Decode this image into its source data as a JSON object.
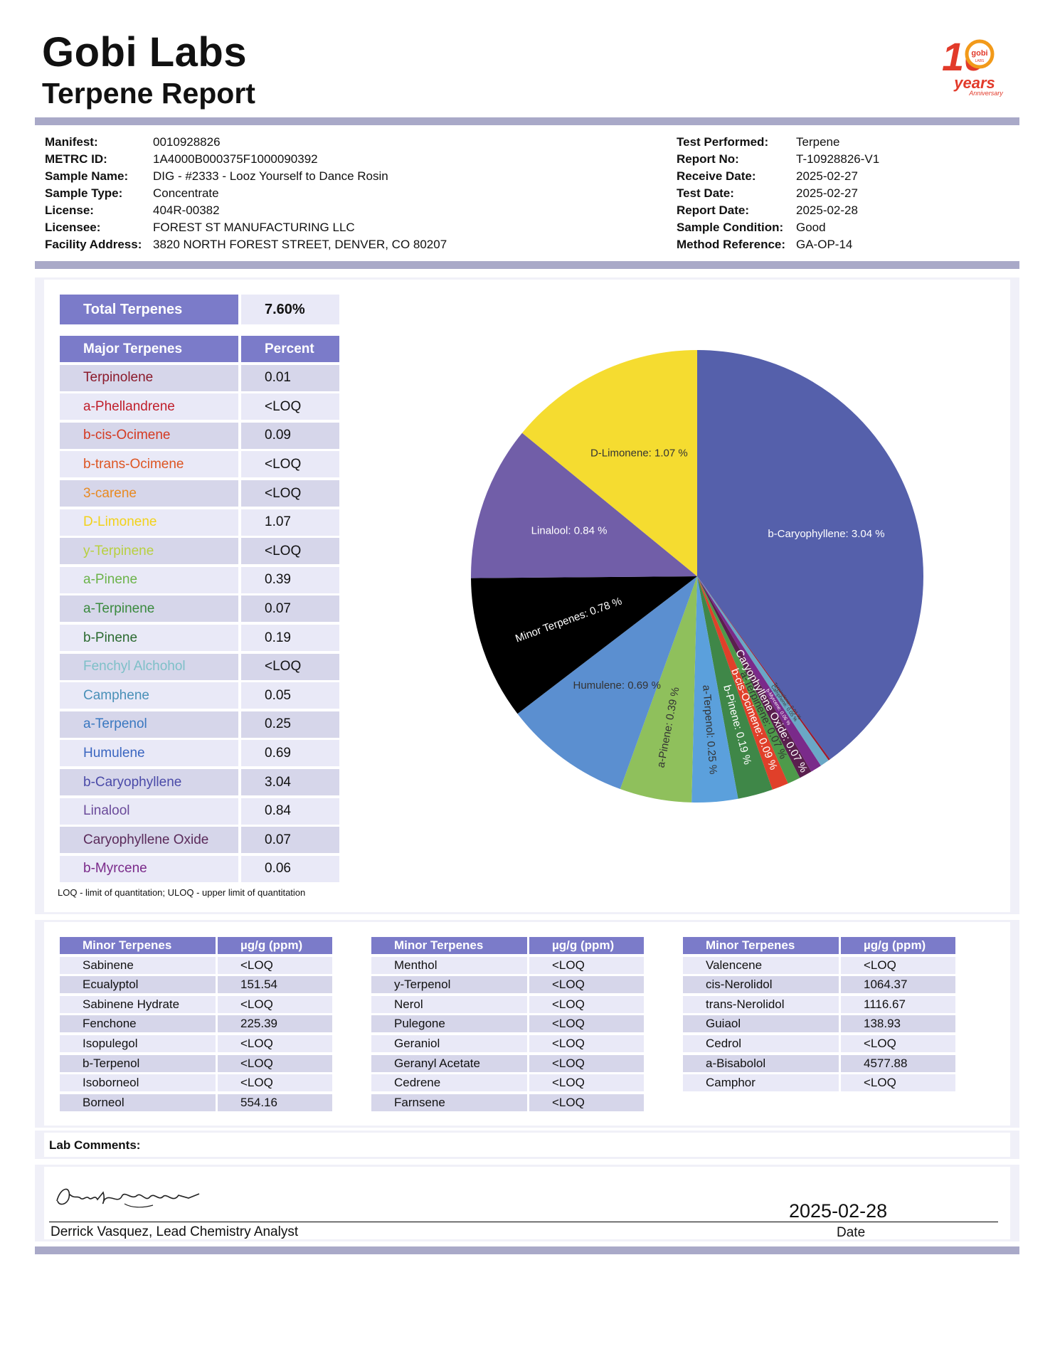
{
  "header": {
    "lab_name": "Gobi Labs",
    "report_title": "Terpene Report",
    "logo": {
      "number": "10",
      "brand": "gobi",
      "brand_sub": "LABS",
      "text": "years",
      "subtext": "Anniversary"
    }
  },
  "sample_info": {
    "left": [
      {
        "label": "Manifest:",
        "value": "0010928826"
      },
      {
        "label": "METRC ID:",
        "value": "1A4000B000375F1000090392"
      },
      {
        "label": "Sample Name:",
        "value": "DIG - #2333 - Looz Yourself to Dance Rosin"
      },
      {
        "label": "Sample Type:",
        "value": "Concentrate"
      },
      {
        "label": "License:",
        "value": "404R-00382"
      },
      {
        "label": "Licensee:",
        "value": "FOREST ST MANUFACTURING LLC"
      },
      {
        "label": "Facility Address:",
        "value": "3820 NORTH FOREST STREET, DENVER, CO 80207"
      }
    ],
    "right": [
      {
        "label": "Test Performed:",
        "value": "Terpene"
      },
      {
        "label": "Report No:",
        "value": "T-10928826-V1"
      },
      {
        "label": "Receive Date:",
        "value": "2025-02-27"
      },
      {
        "label": "Test Date:",
        "value": "2025-02-27"
      },
      {
        "label": "Report Date:",
        "value": "2025-02-28"
      },
      {
        "label": "Sample Condition:",
        "value": "Good"
      },
      {
        "label": "Method Reference:",
        "value": "GA-OP-14"
      }
    ]
  },
  "total_terpenes": {
    "label": "Total Terpenes",
    "value": "7.60%"
  },
  "major_table": {
    "headers": [
      "Major Terpenes",
      "Percent"
    ],
    "rows": [
      {
        "name": "Terpinolene",
        "value": "0.01",
        "color": "#8b1a2b"
      },
      {
        "name": "a-Phellandrene",
        "value": "<LOQ",
        "color": "#c0202c"
      },
      {
        "name": "b-cis-Ocimene",
        "value": "0.09",
        "color": "#d43a22"
      },
      {
        "name": "b-trans-Ocimene",
        "value": "<LOQ",
        "color": "#dd5522"
      },
      {
        "name": "3-carene",
        "value": "<LOQ",
        "color": "#e88a22"
      },
      {
        "name": "D-Limonene",
        "value": "1.07",
        "color": "#f2d21a"
      },
      {
        "name": "y-Terpinene",
        "value": "<LOQ",
        "color": "#b8d040"
      },
      {
        "name": "a-Pinene",
        "value": "0.39",
        "color": "#6bb34a"
      },
      {
        "name": "a-Terpinene",
        "value": "0.07",
        "color": "#3a8a3e"
      },
      {
        "name": "b-Pinene",
        "value": "0.19",
        "color": "#2b6a30"
      },
      {
        "name": "Fenchyl Alchohol",
        "value": "<LOQ",
        "color": "#7ec0c8"
      },
      {
        "name": "Camphene",
        "value": "0.05",
        "color": "#4a90b8"
      },
      {
        "name": "a-Terpenol",
        "value": "0.25",
        "color": "#3a78c0"
      },
      {
        "name": "Humulene",
        "value": "0.69",
        "color": "#3a66c0"
      },
      {
        "name": "b-Caryophyllene",
        "value": "3.04",
        "color": "#4a4aa8"
      },
      {
        "name": "Linalool",
        "value": "0.84",
        "color": "#6a4a9a"
      },
      {
        "name": "Caryophyllene Oxide",
        "value": "0.07",
        "color": "#5a2a5a"
      },
      {
        "name": "b-Myrcene",
        "value": "0.06",
        "color": "#7a2a8a"
      }
    ]
  },
  "footnote": "LOQ - limit of quantitation; ULOQ - upper limit of quantitation",
  "chart_data": {
    "type": "pie",
    "slices": [
      {
        "label": "b-Caryophyllene: 3.04 %",
        "value": 3.04,
        "color": "#5560ab"
      },
      {
        "label": "Terpinolene: 0.01 %",
        "value": 0.01,
        "color": "#9b1c2e"
      },
      {
        "label": "Camphene: 0.05 %",
        "value": 0.05,
        "color": "#6aa7c6"
      },
      {
        "label": "b-Myrcene: 0.06 %",
        "value": 0.06,
        "color": "#7a2a8a"
      },
      {
        "label": "Caryophyllene Oxide: 0.07 %",
        "value": 0.07,
        "color": "#5a1f4e"
      },
      {
        "label": "a-Terpinene: 0.07 %",
        "value": 0.07,
        "color": "#4e9a4a"
      },
      {
        "label": "b-cis-Ocimene: 0.09 %",
        "value": 0.09,
        "color": "#e0402a"
      },
      {
        "label": "b-Pinene: 0.19 %",
        "value": 0.19,
        "color": "#3f8748"
      },
      {
        "label": "a-Terpenol: 0.25 %",
        "value": 0.25,
        "color": "#5ba0dc"
      },
      {
        "label": "a-Pinene: 0.39 %",
        "value": 0.39,
        "color": "#8fc05c"
      },
      {
        "label": "Humulene: 0.69 %",
        "value": 0.69,
        "color": "#5b8fd0"
      },
      {
        "label": "Minor Terpenes: 0.78 %",
        "value": 0.78,
        "color": "#000000"
      },
      {
        "label": "Linalool: 0.84 %",
        "value": 0.84,
        "color": "#715ea8"
      },
      {
        "label": "D-Limonene: 1.07 %",
        "value": 1.07,
        "color": "#f5dc30"
      }
    ]
  },
  "minor_tables": [
    {
      "headers": [
        "Minor Terpenes",
        "µg/g (ppm)"
      ],
      "rows": [
        {
          "name": "Sabinene",
          "value": "<LOQ"
        },
        {
          "name": "Ecualyptol",
          "value": "151.54"
        },
        {
          "name": "Sabinene Hydrate",
          "value": "<LOQ"
        },
        {
          "name": "Fenchone",
          "value": "225.39"
        },
        {
          "name": "Isopulegol",
          "value": "<LOQ"
        },
        {
          "name": "b-Terpenol",
          "value": "<LOQ"
        },
        {
          "name": "Isoborneol",
          "value": "<LOQ"
        },
        {
          "name": "Borneol",
          "value": "554.16"
        }
      ]
    },
    {
      "headers": [
        "Minor Terpenes",
        "µg/g (ppm)"
      ],
      "rows": [
        {
          "name": "Menthol",
          "value": "<LOQ"
        },
        {
          "name": "y-Terpenol",
          "value": "<LOQ"
        },
        {
          "name": "Nerol",
          "value": "<LOQ"
        },
        {
          "name": "Pulegone",
          "value": "<LOQ"
        },
        {
          "name": "Geraniol",
          "value": "<LOQ"
        },
        {
          "name": "Geranyl Acetate",
          "value": "<LOQ"
        },
        {
          "name": "Cedrene",
          "value": "<LOQ"
        },
        {
          "name": "Farnsene",
          "value": "<LOQ"
        }
      ]
    },
    {
      "headers": [
        "Minor Terpenes",
        "µg/g (ppm)"
      ],
      "rows": [
        {
          "name": "Valencene",
          "value": "<LOQ"
        },
        {
          "name": "cis-Nerolidol",
          "value": "1064.37"
        },
        {
          "name": "trans-Nerolidol",
          "value": "1116.67"
        },
        {
          "name": "Guiaol",
          "value": "138.93"
        },
        {
          "name": "Cedrol",
          "value": "<LOQ"
        },
        {
          "name": "a-Bisabolol",
          "value": "4577.88"
        },
        {
          "name": "Camphor",
          "value": "<LOQ"
        }
      ]
    }
  ],
  "lab_comments": {
    "label": "Lab Comments:"
  },
  "signature": {
    "signer": "Derrick Vasquez, Lead Chemistry Analyst",
    "date_value": "2025-02-28",
    "date_label": "Date"
  }
}
